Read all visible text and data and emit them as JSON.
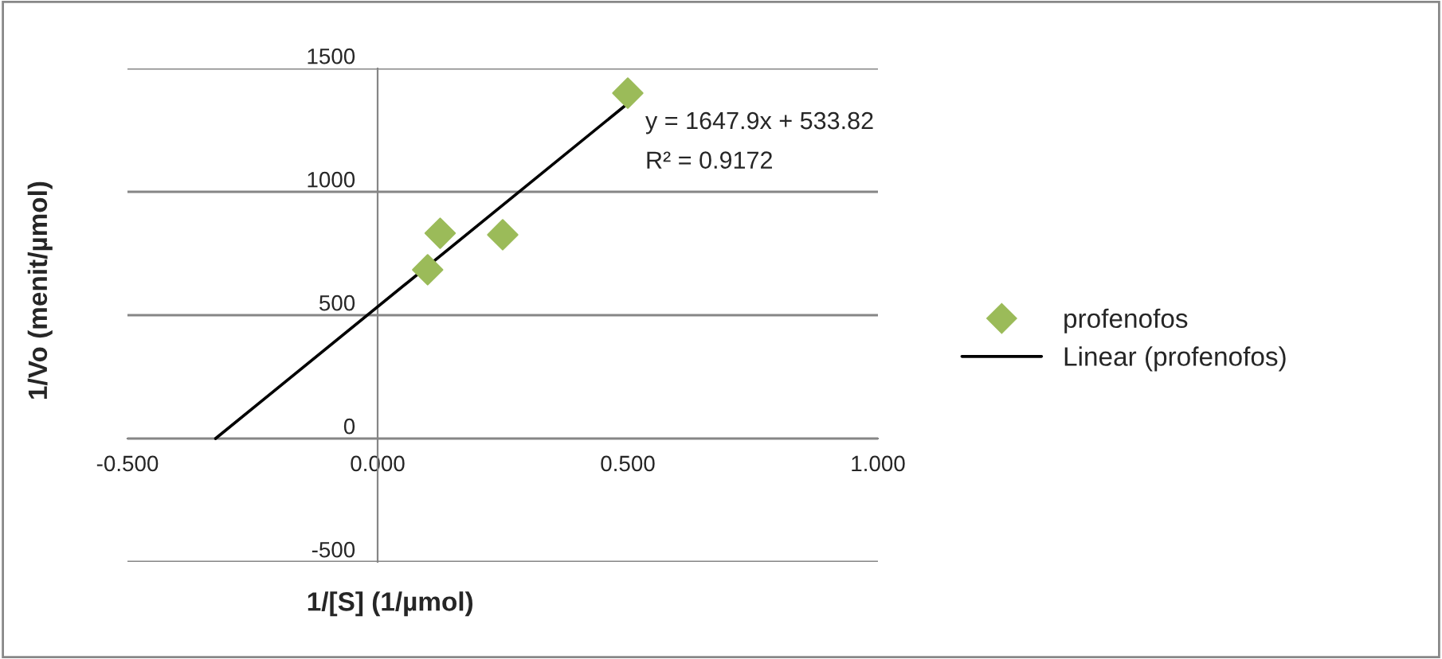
{
  "chart_data": {
    "type": "scatter",
    "xlabel": "1/[S] (1/µmol)",
    "ylabel": "1/Vo (menit/µmol)",
    "xlim": [
      -0.5,
      1.0
    ],
    "xticks": [
      {
        "value": -0.5,
        "label": "-0.500"
      },
      {
        "value": 0,
        "label": "0.000"
      },
      {
        "value": 0.5,
        "label": "0.500"
      },
      {
        "value": 1.0,
        "label": "1.000"
      }
    ],
    "ylim": [
      -500,
      1500
    ],
    "yticks": [
      -500,
      0,
      500,
      1000,
      1500
    ],
    "grid": "y",
    "legend": "right",
    "series": [
      {
        "name": "profenofos",
        "marker": "diamond",
        "color": "#9bbb59",
        "x": [
          0.1,
          0.125,
          0.25,
          0.5
        ],
        "values": [
          684,
          832,
          826,
          1400
        ]
      },
      {
        "name": "Linear (profenofos)",
        "type": "line",
        "color": "#000000",
        "line_style": "solid",
        "x": [
          -0.324,
          0.5
        ],
        "values": [
          0,
          1358
        ]
      }
    ],
    "annotations": [
      "y = 1647.9x + 533.82",
      "R² = 0.9172"
    ]
  }
}
